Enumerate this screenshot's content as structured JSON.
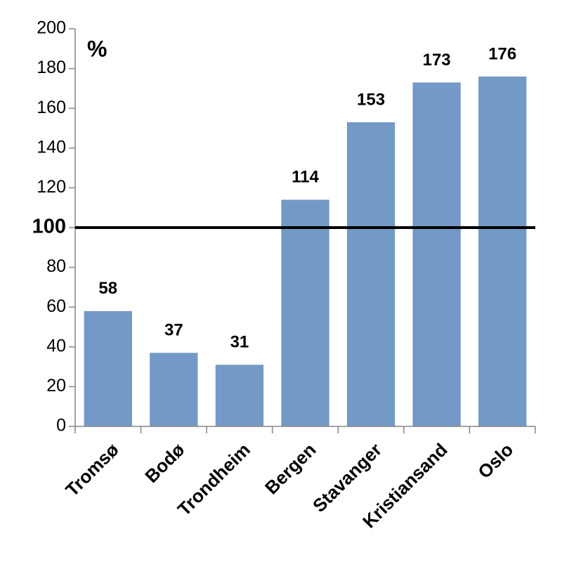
{
  "chart_data": {
    "type": "bar",
    "title": "%",
    "categories": [
      "Tromsø",
      "Bodø",
      "Trondheim",
      "Bergen",
      "Stavanger",
      "Kristiansand",
      "Oslo"
    ],
    "values": [
      58,
      37,
      31,
      114,
      153,
      173,
      176
    ],
    "color": "#7399c6",
    "ylim": [
      0,
      200
    ],
    "yticks": [
      0,
      20,
      40,
      60,
      80,
      100,
      120,
      140,
      160,
      180,
      200
    ],
    "reference_line": 100,
    "grid": false
  }
}
